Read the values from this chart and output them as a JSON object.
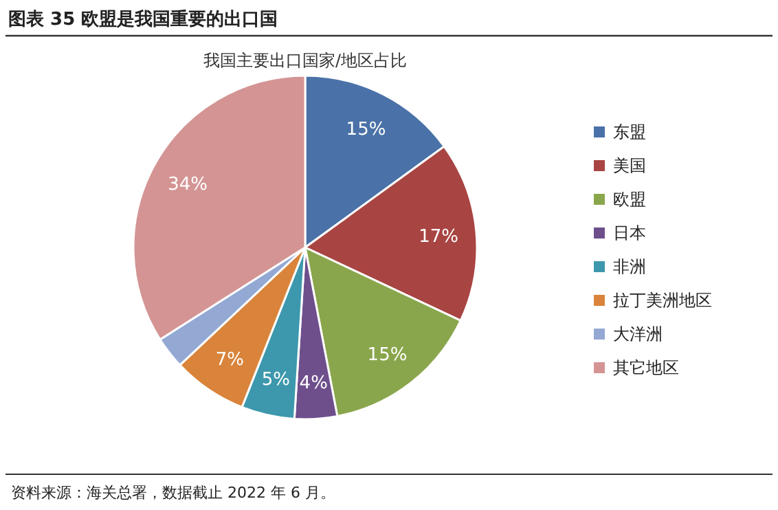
{
  "chart_data": {
    "type": "pie",
    "title": "图表 35 欧盟是我国重要的出口国",
    "subtitle": "我国主要出口国家/地区占比",
    "categories": [
      "东盟",
      "美国",
      "欧盟",
      "日本",
      "非洲",
      "拉丁美洲地区",
      "大洋洲",
      "其它地区"
    ],
    "values": [
      15,
      17,
      15,
      4,
      5,
      7,
      3,
      34
    ],
    "colors": [
      "#4a72a8",
      "#a84442",
      "#8aa64c",
      "#6e4f8c",
      "#3d98ad",
      "#d9843a",
      "#93a9d4",
      "#d49494"
    ],
    "value_labels": [
      "15%",
      "17%",
      "15%",
      "4%",
      "5%",
      "7%",
      null,
      "34%"
    ],
    "legend": "right",
    "annotations": [
      "资料来源：海关总署，数据截止 2022 年 6 月。"
    ]
  }
}
